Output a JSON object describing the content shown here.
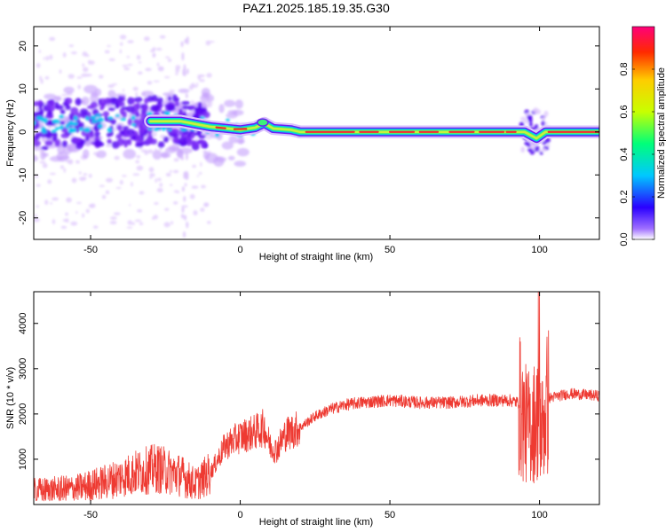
{
  "figure": {
    "title": "PAZ1.2025.185.19.35.G30"
  },
  "chart_data": [
    {
      "type": "heatmap",
      "xlabel": "Height of straight line (km)",
      "ylabel": "Frequency (Hz)",
      "xlim": [
        -69,
        120
      ],
      "ylim": [
        -25,
        24.5
      ],
      "xticks": [
        -50,
        0,
        50,
        100
      ],
      "yticks": [
        -20,
        -10,
        0,
        10,
        20
      ],
      "colorbar": {
        "label": "Normalized spectral amplitude",
        "range": [
          0,
          1
        ],
        "ticks": [
          "0.0",
          "0.2",
          "0.4",
          "0.6",
          "0.8"
        ],
        "colormap": "gist_rainbow"
      },
      "centerline": [
        {
          "x": -69,
          "y": 1.5
        },
        {
          "x": -50,
          "y": 2.0
        },
        {
          "x": -30,
          "y": 2.5
        },
        {
          "x": -20,
          "y": 2.5
        },
        {
          "x": -10,
          "y": 1.2
        },
        {
          "x": 0,
          "y": 0.5
        },
        {
          "x": 5,
          "y": 1.0
        },
        {
          "x": 8,
          "y": 2.0
        },
        {
          "x": 11,
          "y": 0.8
        },
        {
          "x": 17,
          "y": 0.5
        },
        {
          "x": 20,
          "y": 0.0
        },
        {
          "x": 95,
          "y": 0.0
        },
        {
          "x": 99,
          "y": -1.5
        },
        {
          "x": 102,
          "y": 0.0
        },
        {
          "x": 120,
          "y": 0.0
        }
      ]
    },
    {
      "type": "line",
      "xlabel": "Height of straight line (km)",
      "ylabel": "SNR (10 * v/v)",
      "xlim": [
        -69,
        120
      ],
      "ylim": [
        0,
        4700
      ],
      "xticks": [
        -50,
        0,
        50,
        100
      ],
      "yticks": [
        1000,
        2000,
        3000,
        4000
      ],
      "series": [
        {
          "color": "#ee3a32",
          "trend": [
            {
              "x": -69,
              "y": 300
            },
            {
              "x": -55,
              "y": 350
            },
            {
              "x": -45,
              "y": 500
            },
            {
              "x": -35,
              "y": 700
            },
            {
              "x": -28,
              "y": 800
            },
            {
              "x": -20,
              "y": 650
            },
            {
              "x": -15,
              "y": 450
            },
            {
              "x": -10,
              "y": 700
            },
            {
              "x": -5,
              "y": 1300
            },
            {
              "x": 0,
              "y": 1500
            },
            {
              "x": 5,
              "y": 1600
            },
            {
              "x": 8,
              "y": 1700
            },
            {
              "x": 10,
              "y": 1300
            },
            {
              "x": 12,
              "y": 1200
            },
            {
              "x": 15,
              "y": 1550
            },
            {
              "x": 20,
              "y": 1700
            },
            {
              "x": 25,
              "y": 1950
            },
            {
              "x": 30,
              "y": 2100
            },
            {
              "x": 35,
              "y": 2200
            },
            {
              "x": 40,
              "y": 2250
            },
            {
              "x": 50,
              "y": 2300
            },
            {
              "x": 60,
              "y": 2250
            },
            {
              "x": 70,
              "y": 2250
            },
            {
              "x": 80,
              "y": 2300
            },
            {
              "x": 90,
              "y": 2300
            },
            {
              "x": 93,
              "y": 2250
            },
            {
              "x": 95,
              "y": 1800
            },
            {
              "x": 97,
              "y": 1700
            },
            {
              "x": 99,
              "y": 1900
            },
            {
              "x": 101,
              "y": 1700
            },
            {
              "x": 103,
              "y": 2350
            },
            {
              "x": 110,
              "y": 2450
            },
            {
              "x": 120,
              "y": 2400
            }
          ]
        }
      ]
    }
  ]
}
